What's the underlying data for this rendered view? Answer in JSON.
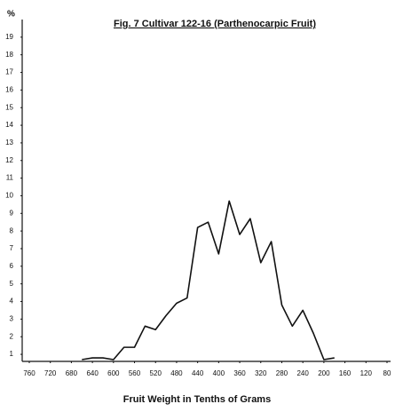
{
  "chart_data": {
    "type": "line",
    "title": "Fig. 7   Cultivar 122-16 (Parthenocarpic Fruit)",
    "x_label": "Fruit Weight in Tenths of Grams",
    "y_label": "%",
    "x": [
      660,
      640,
      620,
      600,
      580,
      560,
      540,
      520,
      500,
      480,
      460,
      440,
      420,
      400,
      380,
      360,
      340,
      320,
      300,
      280,
      260,
      240,
      220,
      200,
      180
    ],
    "values": [
      0.7,
      0.8,
      0.8,
      0.7,
      1.4,
      1.4,
      2.6,
      2.4,
      3.2,
      3.9,
      4.2,
      8.2,
      8.5,
      6.7,
      9.7,
      7.8,
      8.7,
      6.2,
      7.4,
      3.8,
      2.6,
      3.5,
      2.2,
      0.7,
      0.8
    ],
    "color": "#111111",
    "xlim": [
      760,
      80
    ],
    "xticks": [
      760,
      720,
      680,
      640,
      600,
      560,
      520,
      480,
      440,
      400,
      360,
      320,
      280,
      240,
      200,
      160,
      120,
      80
    ],
    "ylim": [
      0.6,
      20
    ],
    "yticks": [
      1,
      2,
      3,
      4,
      5,
      6,
      7,
      8,
      9,
      10,
      11,
      12,
      13,
      14,
      15,
      16,
      17,
      18,
      19
    ]
  }
}
